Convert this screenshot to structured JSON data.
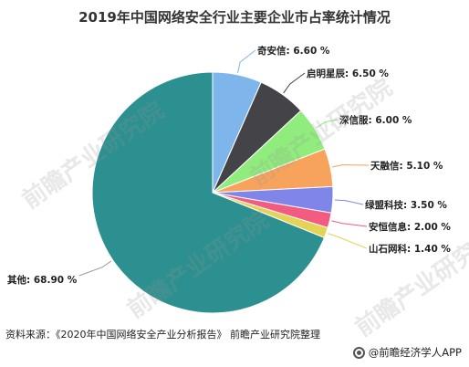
{
  "colors": {
    "title": "#333333",
    "leader": "#999999"
  },
  "chart_data": {
    "type": "pie",
    "title": "2019年中国网络安全行业主要企业市占率统计情况",
    "start_angle_deg": 0,
    "direction": "clockwise",
    "slices": [
      {
        "name": "奇安信",
        "value": 6.6,
        "label": "6.60 %",
        "color": "#7eb6ec"
      },
      {
        "name": "启明星辰",
        "value": 6.5,
        "label": "6.50 %",
        "color": "#434348"
      },
      {
        "name": "深信服",
        "value": 6.0,
        "label": "6.00 %",
        "color": "#90ed7d"
      },
      {
        "name": "天融信",
        "value": 5.1,
        "label": "5.10 %",
        "color": "#f7a35c"
      },
      {
        "name": "绿盟科技",
        "value": 3.5,
        "label": "3.50 %",
        "color": "#8085e9"
      },
      {
        "name": "安恒信息",
        "value": 2.0,
        "label": "2.00 %",
        "color": "#f15c80"
      },
      {
        "name": "山石网科",
        "value": 1.4,
        "label": "1.40 %",
        "color": "#e4d354"
      },
      {
        "name": "其他",
        "value": 68.9,
        "label": "68.90 %",
        "color": "#2b908f"
      }
    ]
  },
  "source": "资料来源：《2020年中国网络安全产业分析报告》 前瞻产业研究院整理",
  "app_credit": "@前瞻经济学人APP",
  "watermark": "前瞻产业研究院"
}
